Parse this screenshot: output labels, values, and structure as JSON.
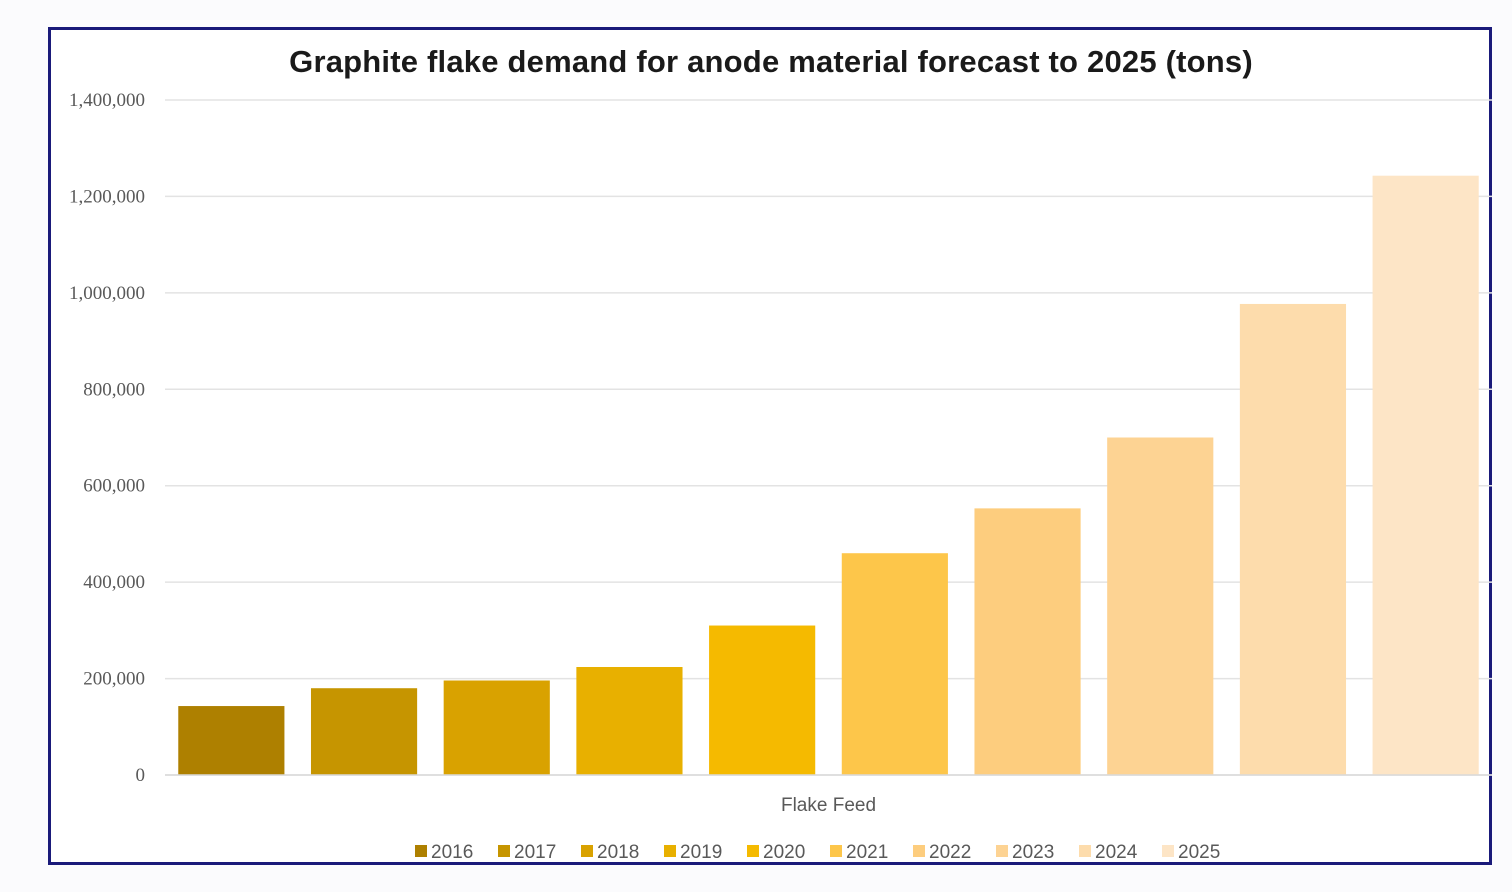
{
  "chart_data": {
    "type": "bar",
    "title": "Graphite flake demand for anode material forecast to 2025 (tons)",
    "xlabel": "Flake Feed",
    "ylabel": "",
    "ylim": [
      0,
      1400000
    ],
    "yticks": [
      "0",
      "200,000",
      "400,000",
      "600,000",
      "800,000",
      "1,000,000",
      "1,200,000",
      "1,400,000"
    ],
    "grid": true,
    "legend_position": "bottom",
    "categories": [
      "Flake Feed"
    ],
    "series": [
      {
        "name": "2016",
        "values": [
          143000
        ],
        "color": "#ae8000"
      },
      {
        "name": "2017",
        "values": [
          180000
        ],
        "color": "#c69500"
      },
      {
        "name": "2018",
        "values": [
          196000
        ],
        "color": "#d9a200"
      },
      {
        "name": "2019",
        "values": [
          224000
        ],
        "color": "#e8b000"
      },
      {
        "name": "2020",
        "values": [
          310000
        ],
        "color": "#f5ba00"
      },
      {
        "name": "2021",
        "values": [
          460000
        ],
        "color": "#fdc64a"
      },
      {
        "name": "2022",
        "values": [
          553000
        ],
        "color": "#fdcd7e"
      },
      {
        "name": "2023",
        "values": [
          700000
        ],
        "color": "#fdd393"
      },
      {
        "name": "2024",
        "values": [
          977000
        ],
        "color": "#fddcac"
      },
      {
        "name": "2025",
        "values": [
          1243000
        ],
        "color": "#fde5c6"
      }
    ]
  },
  "style": {
    "frame_color": "#1a1a7a",
    "grid_color": "#e3e3e3",
    "text_color": "#595959"
  }
}
